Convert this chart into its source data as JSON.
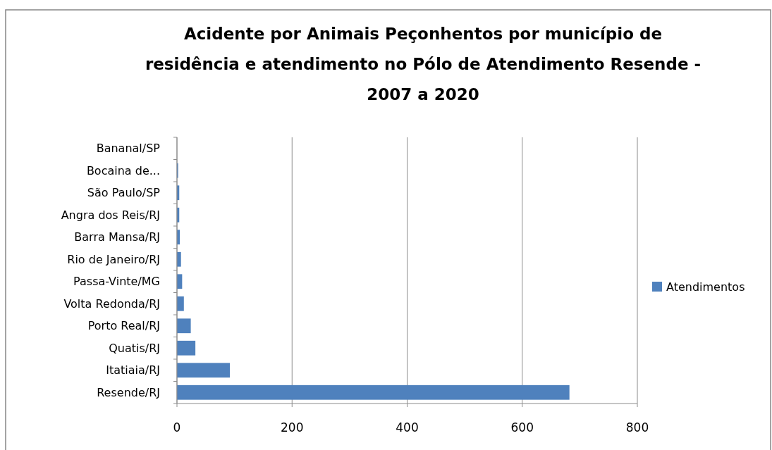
{
  "chart_data": {
    "type": "bar",
    "orientation": "horizontal",
    "title": "Acidente por Animais Peçonhentos por município de residência e atendimento no Pólo de Atendimento Resende - 2007 a 2020",
    "categories": [
      "Bananal/SP",
      "Bocaina de...",
      "São Paulo/SP",
      "Angra dos Reis/RJ",
      "Barra Mansa/RJ",
      "Rio de Janeiro/RJ",
      "Passa-Vinte/MG",
      "Volta Redonda/RJ",
      "Porto Real/RJ",
      "Quatis/RJ",
      "Itatiaia/RJ",
      "Resende/RJ"
    ],
    "series": [
      {
        "name": "Atendimentos",
        "color": "#4f81bd",
        "values": [
          null,
          2,
          4,
          4,
          5,
          7,
          9,
          12,
          24,
          32,
          92,
          682
        ]
      }
    ],
    "xlim": [
      0,
      800
    ],
    "xticks": [
      0,
      200,
      400,
      600,
      800
    ],
    "grid": "x",
    "legend": "right"
  }
}
